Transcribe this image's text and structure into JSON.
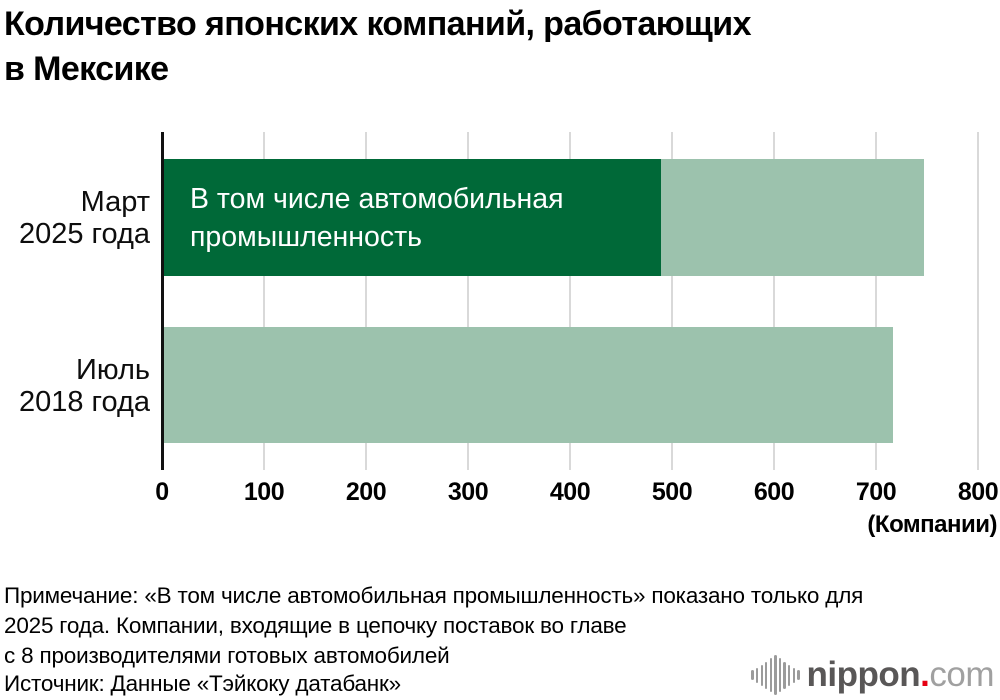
{
  "title_lines": [
    "Количество японских компаний, работающих",
    "в Мексике"
  ],
  "chart_data": {
    "type": "bar",
    "orientation": "horizontal",
    "title": "Количество японских компаний, работающих в Мексике",
    "categories": [
      "Март 2025 года",
      "Июль 2018 года"
    ],
    "category_labels": [
      "Март\n2025 года",
      "Июль\n2018 года"
    ],
    "series": [
      {
        "name": "",
        "values": [
          745,
          715
        ],
        "color": "#9cc2ad"
      },
      {
        "name": "В том числе автомобильная промышленность",
        "values": [
          487,
          null
        ],
        "color": "#006938"
      }
    ],
    "xlim": [
      0,
      800
    ],
    "xticks": [
      0,
      100,
      200,
      300,
      400,
      500,
      600,
      700,
      800
    ],
    "xlabel": "(Компании)",
    "ylabel": "",
    "grid": true,
    "legend_position": "none",
    "gridline_color": "#d9d9d9",
    "axis_color": "#111111"
  },
  "inner_bar_label": "В том числе автомобильная промышленность",
  "axis_unit": "(Компании)",
  "note_lines": [
    "Примечание: «В том числе автомобильная промышленность» показано только для",
    "2025 года. Компании, входящие в цепочку поставок во главе",
    "с 8 производителями готовых автомобилей"
  ],
  "source": "Источник: Данные «Тэйкоку датабанк»",
  "logo": {
    "icon": "sound-wave-icon",
    "brand": "nippon",
    "dot": ".",
    "tld": "com",
    "brand_color": "#595757",
    "dot_color": "#e60012",
    "tld_color": "#a0a0a0"
  }
}
